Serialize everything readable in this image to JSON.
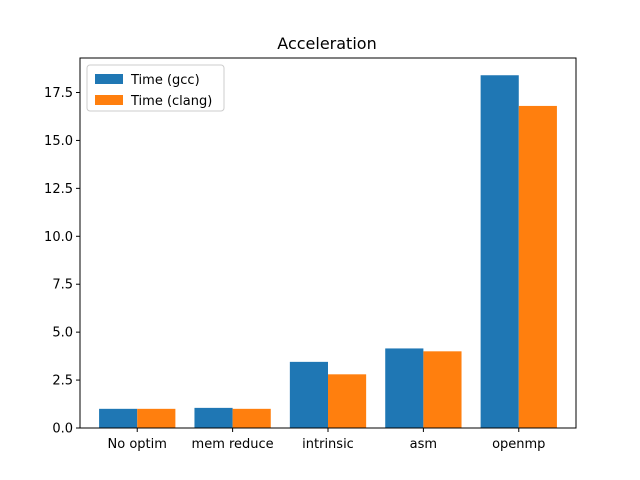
{
  "chart_data": {
    "type": "bar",
    "title": "Acceleration",
    "xlabel": "",
    "ylabel": "",
    "categories": [
      "No optim",
      "mem reduce",
      "intrinsic",
      "asm",
      "openmp"
    ],
    "series": [
      {
        "name": "Time (gcc)",
        "color": "#1f77b4",
        "values": [
          1.0,
          1.05,
          3.45,
          4.15,
          18.4
        ]
      },
      {
        "name": "Time (clang)",
        "color": "#ff7f0e",
        "values": [
          1.0,
          1.0,
          2.8,
          4.0,
          16.8
        ]
      }
    ],
    "ylim": [
      0,
      19.3
    ],
    "yticks": [
      0.0,
      2.5,
      5.0,
      7.5,
      10.0,
      12.5,
      15.0,
      17.5
    ],
    "ytick_labels": [
      "0.0",
      "2.5",
      "5.0",
      "7.5",
      "10.0",
      "12.5",
      "15.0",
      "17.5"
    ],
    "grid": false,
    "legend": {
      "placement": "top-left",
      "entries": [
        "Time (gcc)",
        "Time (clang)"
      ]
    }
  }
}
